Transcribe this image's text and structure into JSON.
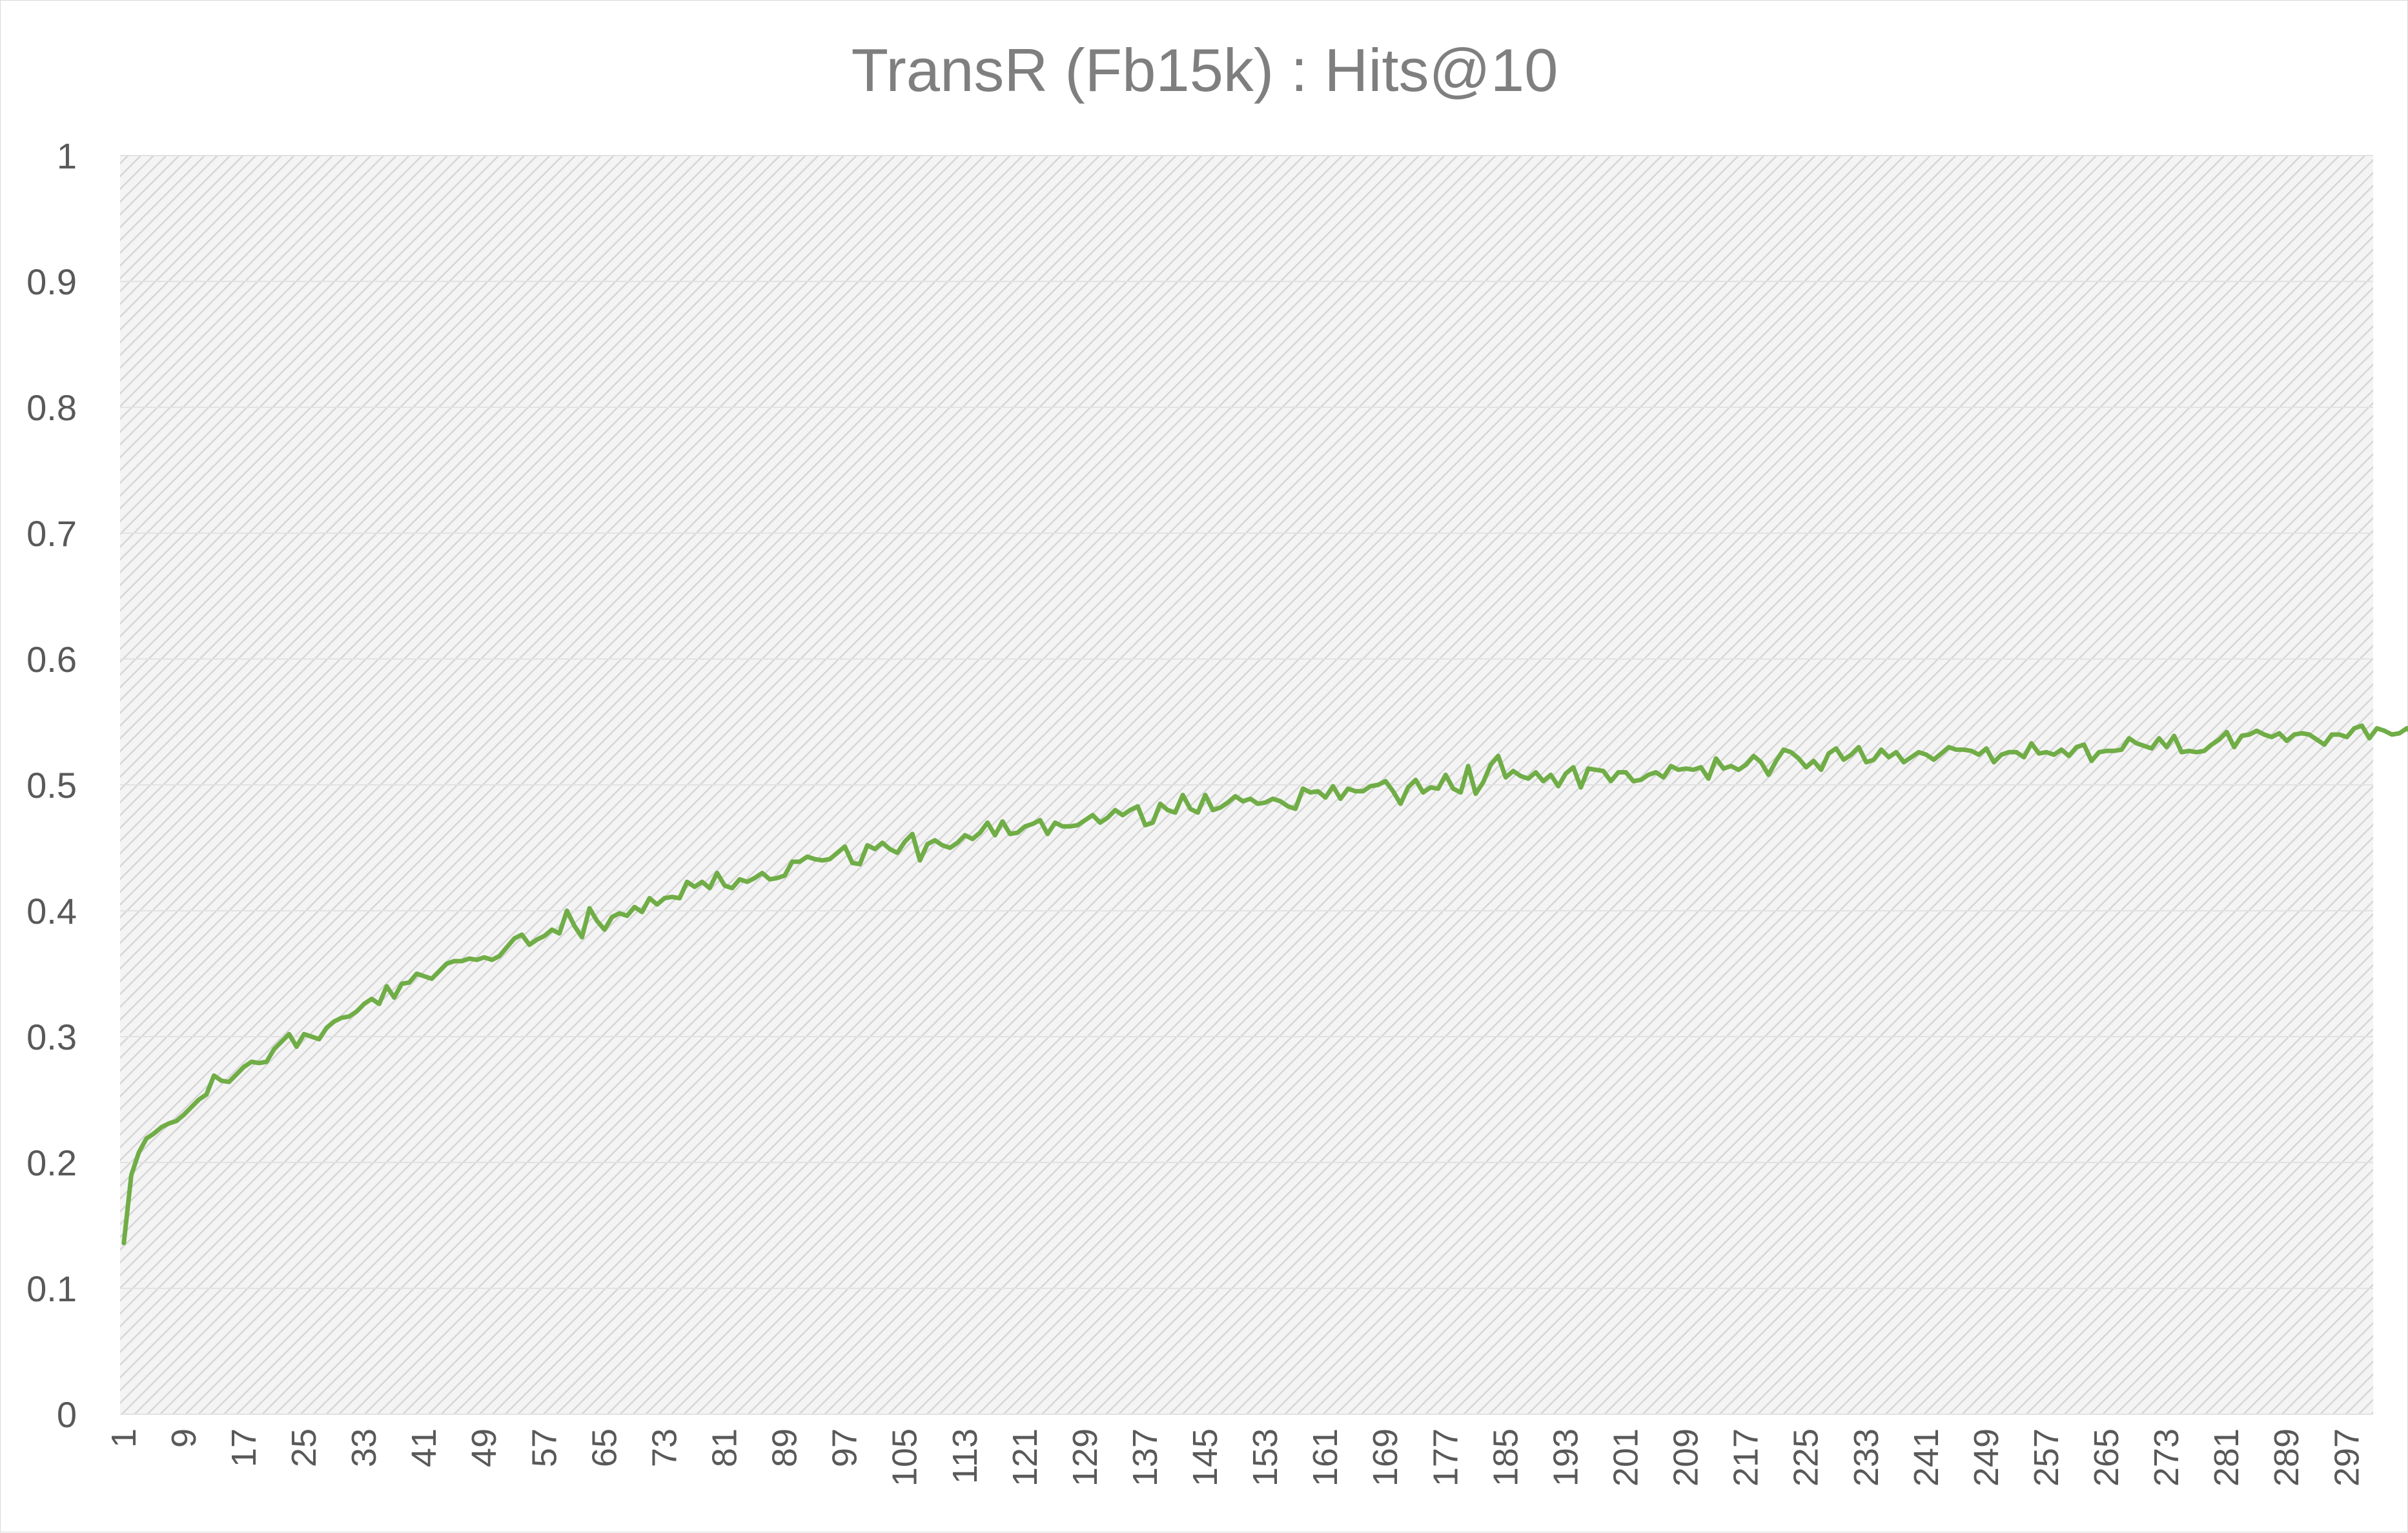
{
  "chart_data": {
    "type": "line",
    "title": "TransR (Fb15k) : Hits@10",
    "xlabel": "",
    "ylabel": "",
    "ylim": [
      0,
      1
    ],
    "yticks": [
      "0",
      "0.1",
      "0.2",
      "0.3",
      "0.4",
      "0.5",
      "0.6",
      "0.7",
      "0.8",
      "0.9",
      "1"
    ],
    "xticks": [
      "1",
      "9",
      "17",
      "25",
      "33",
      "41",
      "49",
      "57",
      "65",
      "73",
      "81",
      "89",
      "97",
      "105",
      "113",
      "121",
      "129",
      "137",
      "145",
      "153",
      "161",
      "169",
      "177",
      "185",
      "193",
      "201",
      "209",
      "217",
      "225",
      "233",
      "241",
      "249",
      "257",
      "265",
      "273",
      "281",
      "289",
      "297"
    ],
    "grid": true,
    "legend": "none",
    "x_start": 1,
    "x_end": 300,
    "series": [
      {
        "color": "#70ad47",
        "values": [
          0.136,
          0.19,
          0.208,
          0.219,
          0.223,
          0.228,
          0.231,
          0.233,
          0.238,
          0.244,
          0.25,
          0.254,
          0.269,
          0.265,
          0.264,
          0.27,
          0.276,
          0.28,
          0.279,
          0.28,
          0.29,
          0.296,
          0.302,
          0.292,
          0.302,
          0.3,
          0.298,
          0.307,
          0.312,
          0.315,
          0.316,
          0.32,
          0.326,
          0.33,
          0.326,
          0.34,
          0.331,
          0.342,
          0.343,
          0.35,
          0.348,
          0.346,
          0.352,
          0.358,
          0.36,
          0.36,
          0.362,
          0.361,
          0.363,
          0.361,
          0.364,
          0.371,
          0.378,
          0.381,
          0.373,
          0.377,
          0.38,
          0.385,
          0.382,
          0.4,
          0.388,
          0.379,
          0.402,
          0.392,
          0.385,
          0.395,
          0.398,
          0.396,
          0.403,
          0.399,
          0.41,
          0.405,
          0.41,
          0.411,
          0.41,
          0.423,
          0.419,
          0.423,
          0.418,
          0.43,
          0.42,
          0.418,
          0.425,
          0.423,
          0.426,
          0.43,
          0.425,
          0.426,
          0.428,
          0.439,
          0.439,
          0.443,
          0.441,
          0.44,
          0.441,
          0.446,
          0.451,
          0.438,
          0.437,
          0.452,
          0.449,
          0.454,
          0.449,
          0.446,
          0.455,
          0.461,
          0.44,
          0.453,
          0.456,
          0.452,
          0.45,
          0.454,
          0.46,
          0.457,
          0.462,
          0.47,
          0.46,
          0.471,
          0.461,
          0.462,
          0.467,
          0.469,
          0.472,
          0.461,
          0.47,
          0.467,
          0.467,
          0.468,
          0.472,
          0.476,
          0.47,
          0.474,
          0.48,
          0.476,
          0.48,
          0.483,
          0.468,
          0.47,
          0.485,
          0.48,
          0.478,
          0.492,
          0.481,
          0.478,
          0.492,
          0.48,
          0.482,
          0.486,
          0.491,
          0.487,
          0.489,
          0.485,
          0.486,
          0.489,
          0.487,
          0.483,
          0.481,
          0.497,
          0.494,
          0.495,
          0.49,
          0.499,
          0.489,
          0.497,
          0.495,
          0.495,
          0.499,
          0.5,
          0.503,
          0.495,
          0.485,
          0.498,
          0.504,
          0.494,
          0.498,
          0.497,
          0.508,
          0.497,
          0.494,
          0.515,
          0.493,
          0.502,
          0.516,
          0.523,
          0.506,
          0.511,
          0.507,
          0.505,
          0.51,
          0.503,
          0.508,
          0.499,
          0.509,
          0.514,
          0.498,
          0.513,
          0.512,
          0.511,
          0.503,
          0.51,
          0.51,
          0.503,
          0.504,
          0.508,
          0.51,
          0.506,
          0.515,
          0.512,
          0.513,
          0.512,
          0.514,
          0.505,
          0.521,
          0.513,
          0.515,
          0.512,
          0.516,
          0.523,
          0.518,
          0.508,
          0.519,
          0.528,
          0.526,
          0.521,
          0.514,
          0.519,
          0.512,
          0.525,
          0.529,
          0.52,
          0.524,
          0.53,
          0.518,
          0.52,
          0.528,
          0.522,
          0.526,
          0.518,
          0.522,
          0.526,
          0.524,
          0.52,
          0.525,
          0.53,
          0.528,
          0.528,
          0.527,
          0.524,
          0.529,
          0.518,
          0.524,
          0.526,
          0.526,
          0.522,
          0.533,
          0.525,
          0.526,
          0.524,
          0.528,
          0.523,
          0.53,
          0.532,
          0.519,
          0.526,
          0.527,
          0.527,
          0.528,
          0.537,
          0.533,
          0.531,
          0.529,
          0.537,
          0.53,
          0.539,
          0.526,
          0.527,
          0.526,
          0.527,
          0.532,
          0.536,
          0.542,
          0.53,
          0.539,
          0.54,
          0.543,
          0.54,
          0.538,
          0.541,
          0.535,
          0.54,
          0.541,
          0.54,
          0.536,
          0.532,
          0.54,
          0.54,
          0.538,
          0.545,
          0.547,
          0.537,
          0.545,
          0.543,
          0.54,
          0.541,
          0.545,
          0.54,
          0.536
        ]
      }
    ]
  }
}
